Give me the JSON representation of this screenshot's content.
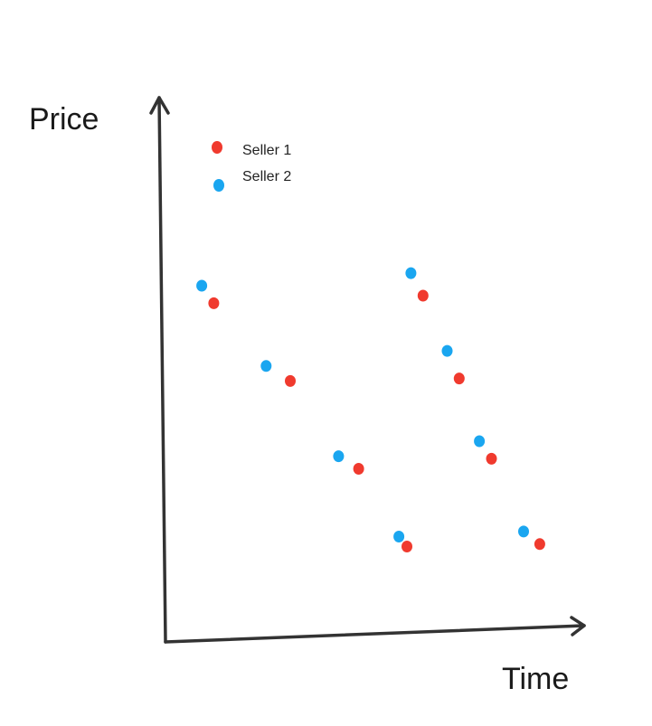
{
  "chart_data": {
    "type": "scatter",
    "xlabel": "Time",
    "ylabel": "Price",
    "grid": false,
    "legend_position": "top-left",
    "series": [
      {
        "name": "Seller 1",
        "color": "#f03a2e",
        "points": [
          {
            "x": 1.2,
            "y": 6.75
          },
          {
            "x": 3.1,
            "y": 5.2
          },
          {
            "x": 4.8,
            "y": 3.45
          },
          {
            "x": 6.0,
            "y": 1.9
          },
          {
            "x": 6.4,
            "y": 6.9
          },
          {
            "x": 7.3,
            "y": 5.25
          },
          {
            "x": 8.1,
            "y": 3.65
          },
          {
            "x": 9.3,
            "y": 1.95
          }
        ]
      },
      {
        "name": "Seller 2",
        "color": "#1aa6f0",
        "points": [
          {
            "x": 0.9,
            "y": 7.1
          },
          {
            "x": 2.5,
            "y": 5.5
          },
          {
            "x": 4.3,
            "y": 3.7
          },
          {
            "x": 5.8,
            "y": 2.1
          },
          {
            "x": 6.1,
            "y": 7.35
          },
          {
            "x": 7.0,
            "y": 5.8
          },
          {
            "x": 7.8,
            "y": 4.0
          },
          {
            "x": 8.9,
            "y": 2.2
          }
        ]
      }
    ]
  }
}
